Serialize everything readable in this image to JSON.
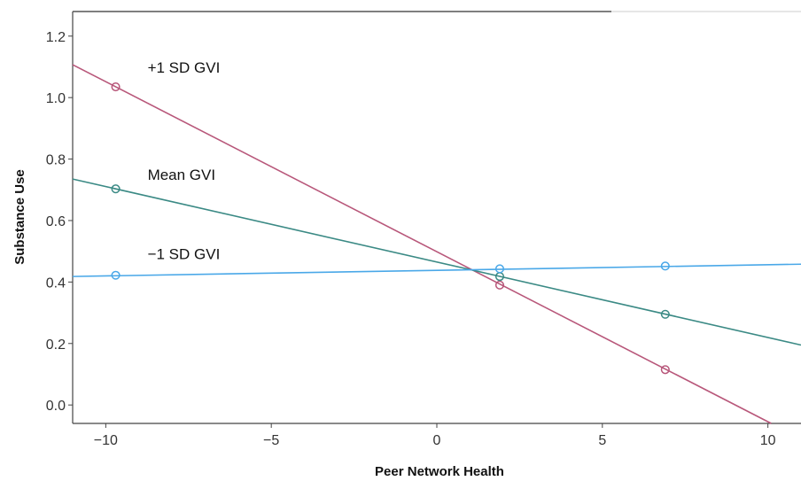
{
  "chart_data": {
    "type": "line",
    "xlabel": "Peer Network Health",
    "ylabel": "Substance Use",
    "xlim": [
      -11,
      11
    ],
    "ylim": [
      -0.06,
      1.28
    ],
    "xticks": [
      -10,
      -5,
      0,
      5,
      10
    ],
    "xtick_labels": [
      "−10",
      "−5",
      "0",
      "5",
      "10"
    ],
    "yticks": [
      0.0,
      0.2,
      0.4,
      0.6,
      0.8,
      1.0,
      1.2
    ],
    "ytick_labels": [
      "0.0",
      "0.2",
      "0.4",
      "0.6",
      "0.8",
      "1.0",
      "1.2"
    ],
    "grid": false,
    "legend": "none",
    "series": [
      {
        "name": "+1 SD GVI",
        "color": "#b8577a",
        "line": {
          "x": [
            -11,
            10.1
          ],
          "y": [
            1.107,
            -0.06
          ]
        },
        "points": {
          "x": [
            -9.7,
            1.9,
            6.9
          ],
          "y": [
            1.035,
            0.39,
            0.115
          ]
        }
      },
      {
        "name": "Mean GVI",
        "color": "#3b8a85",
        "line": {
          "x": [
            -11,
            11
          ],
          "y": [
            0.735,
            0.195
          ]
        },
        "points": {
          "x": [
            -9.7,
            1.9,
            6.9
          ],
          "y": [
            0.703,
            0.418,
            0.295
          ]
        }
      },
      {
        "name": "−1 SD GVI",
        "color": "#4aa8e8",
        "line": {
          "x": [
            -11,
            11
          ],
          "y": [
            0.418,
            0.458
          ]
        },
        "points": {
          "x": [
            -9.7,
            1.9,
            6.9
          ],
          "y": [
            0.422,
            0.443,
            0.452
          ]
        }
      }
    ]
  }
}
